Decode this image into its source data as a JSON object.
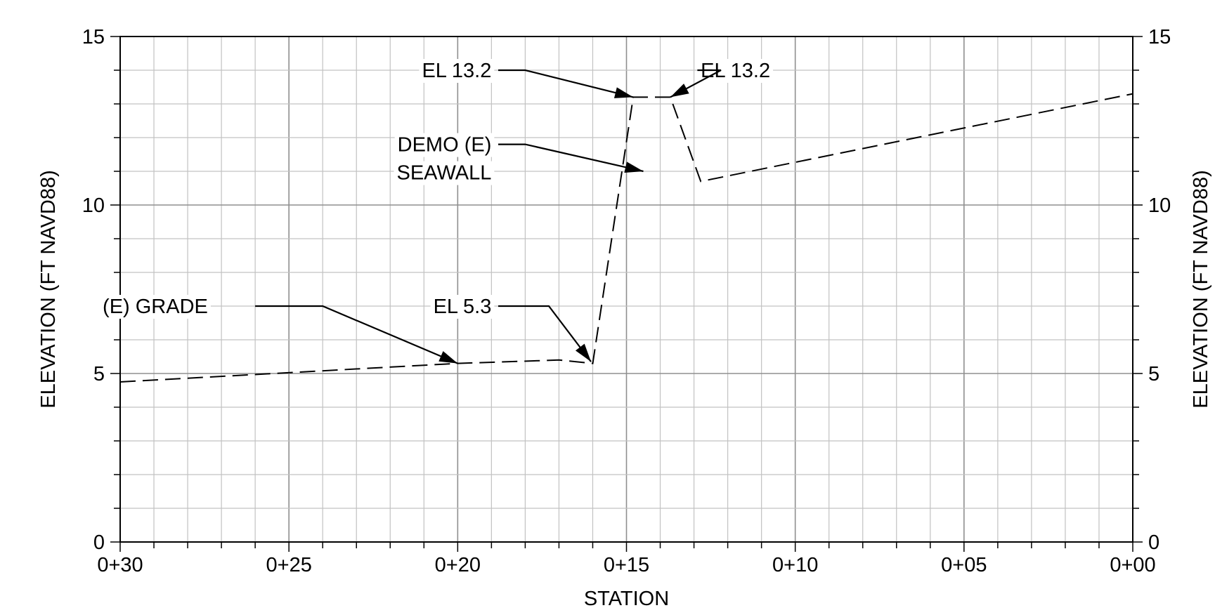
{
  "chart_data": {
    "type": "line",
    "xlabel": "STATION",
    "ylabel_left": "ELEVATION (FT NAVD88)",
    "ylabel_right": "ELEVATION (FT NAVD88)",
    "x_reversed": true,
    "xlim": [
      30,
      0
    ],
    "ylim": [
      0,
      15
    ],
    "x_ticks": [
      {
        "value": 30,
        "label": "0+30"
      },
      {
        "value": 25,
        "label": "0+25"
      },
      {
        "value": 20,
        "label": "0+20"
      },
      {
        "value": 15,
        "label": "0+15"
      },
      {
        "value": 10,
        "label": "0+10"
      },
      {
        "value": 5,
        "label": "0+05"
      },
      {
        "value": 0,
        "label": "0+00"
      }
    ],
    "y_ticks": [
      {
        "value": 0,
        "label": "0"
      },
      {
        "value": 5,
        "label": "5"
      },
      {
        "value": 10,
        "label": "10"
      },
      {
        "value": 15,
        "label": "15"
      }
    ],
    "grid": true,
    "series": [
      {
        "line_style": "dashed",
        "color": "#000000",
        "points": [
          {
            "x": 30,
            "y": 4.75
          },
          {
            "x": 20,
            "y": 5.3
          },
          {
            "x": 17,
            "y": 5.4
          },
          {
            "x": 16,
            "y": 5.3
          },
          {
            "x": 14.8,
            "y": 13.2
          },
          {
            "x": 13.7,
            "y": 13.2
          },
          {
            "x": 12.8,
            "y": 10.7
          },
          {
            "x": 0,
            "y": 13.3
          }
        ]
      }
    ],
    "annotations": [
      {
        "lines": [
          "EL 13.2"
        ],
        "text_x": 19.0,
        "text_y": 14.0,
        "align": "end",
        "leader": [
          [
            18.8,
            14.0
          ],
          [
            18.0,
            14.0
          ],
          [
            14.8,
            13.2
          ]
        ]
      },
      {
        "lines": [
          "EL 13.2"
        ],
        "text_x": 12.8,
        "text_y": 14.0,
        "align": "start",
        "leader": [
          [
            12.9,
            14.0
          ],
          [
            12.2,
            14.0
          ],
          [
            13.7,
            13.2
          ]
        ]
      },
      {
        "lines": [
          "DEMO (E)",
          "SEAWALL"
        ],
        "text_x": 19.0,
        "text_y": 11.8,
        "align": "end",
        "leader": [
          [
            18.8,
            11.8
          ],
          [
            18.0,
            11.8
          ],
          [
            14.5,
            11.0
          ]
        ]
      },
      {
        "lines": [
          "(E) GRADE"
        ],
        "text_x": 27.4,
        "text_y": 7.0,
        "align": "end",
        "leader": [
          [
            26.0,
            7.0
          ],
          [
            24.0,
            7.0
          ],
          [
            20.0,
            5.3
          ]
        ]
      },
      {
        "lines": [
          "EL 5.3"
        ],
        "text_x": 19.0,
        "text_y": 7.0,
        "align": "end",
        "leader": [
          [
            18.8,
            7.0
          ],
          [
            17.3,
            7.0
          ],
          [
            16.05,
            5.35
          ]
        ]
      }
    ]
  }
}
